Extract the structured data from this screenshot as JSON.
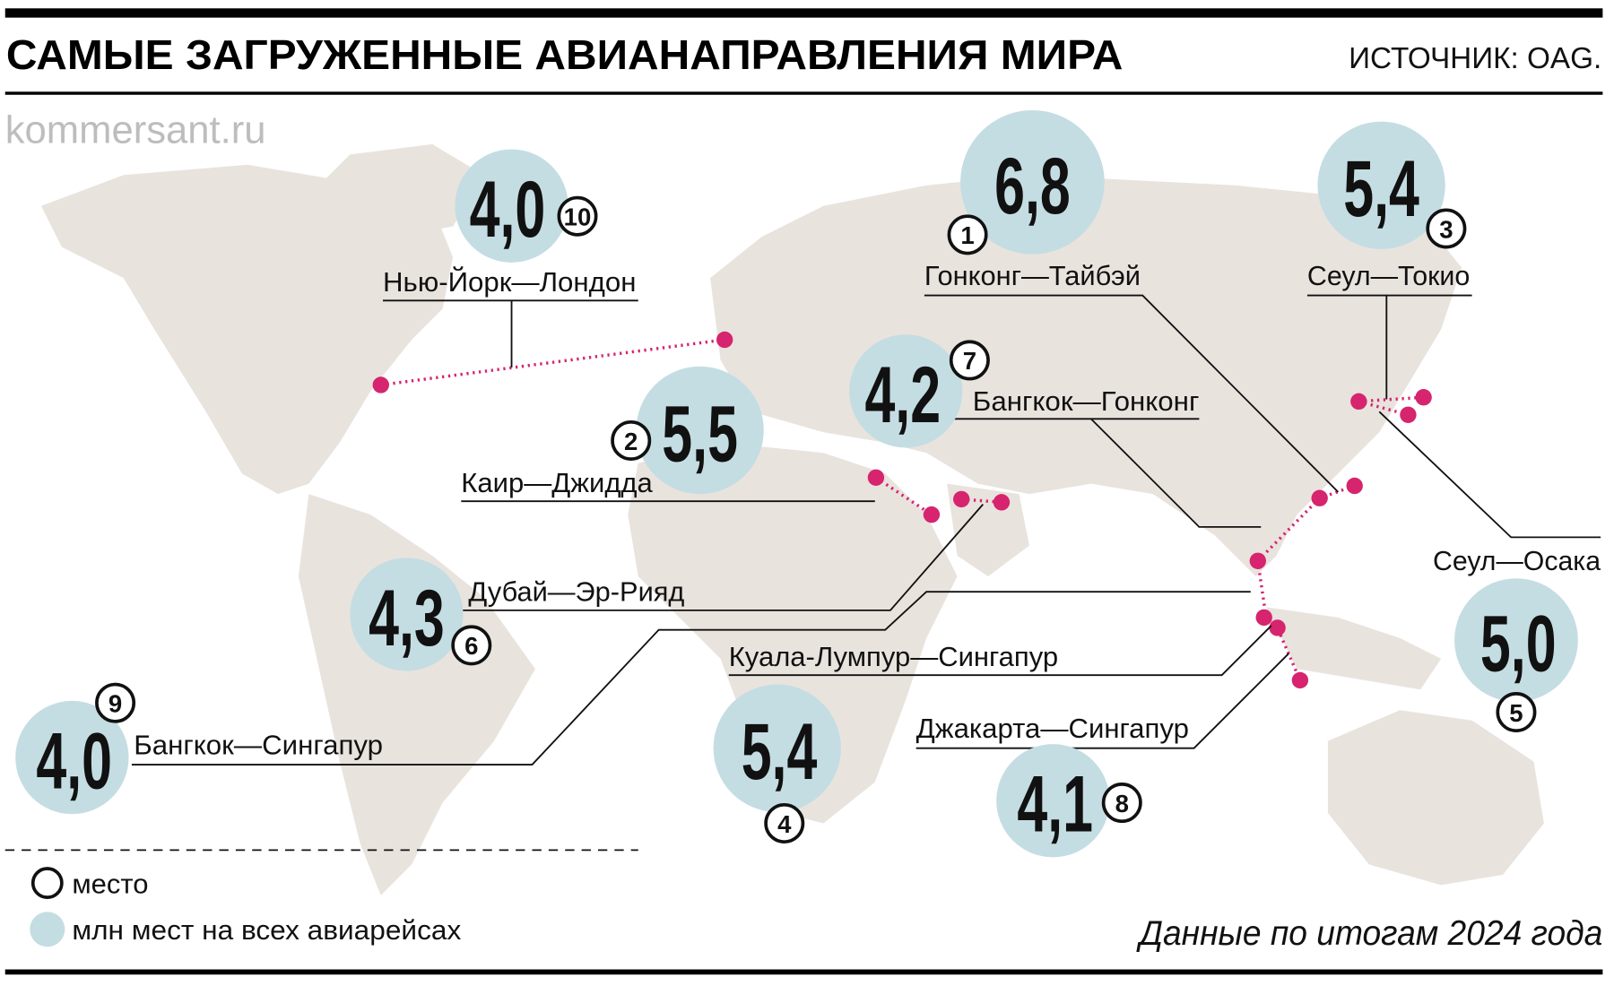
{
  "header": {
    "title": "САМЫЕ ЗАГРУЖЕННЫЕ АВИАНАПРАВЛЕНИЯ МИРА",
    "source": "ИСТОЧНИК: OAG."
  },
  "watermark": "kommersant.ru",
  "colors": {
    "bubble": "#c4dde3",
    "route": "#d6246e",
    "land": "#e9e3de"
  },
  "routes": [
    {
      "rank": "1",
      "name": "Гонконг—Тайбэй",
      "value": "6,8"
    },
    {
      "rank": "2",
      "name": "Каир—Джидда",
      "value": "5,5"
    },
    {
      "rank": "3",
      "name": "Сеул—Токио",
      "value": "5,4"
    },
    {
      "rank": "4",
      "name": "Куала-Лумпур—Сингапур",
      "value": "5,4"
    },
    {
      "rank": "5",
      "name": "Сеул—Осака",
      "value": "5,0"
    },
    {
      "rank": "6",
      "name": "Дубай—Эр-Рияд",
      "value": "4,3"
    },
    {
      "rank": "7",
      "name": "Бангкок—Гонконг",
      "value": "4,2"
    },
    {
      "rank": "8",
      "name": "Джакарта—Сингапур",
      "value": "4,1"
    },
    {
      "rank": "9",
      "name": "Бангкок—Сингапур",
      "value": "4,0"
    },
    {
      "rank": "10",
      "name": "Нью-Йорк—Лондон",
      "value": "4,0"
    }
  ],
  "legend": {
    "rank": "место",
    "value": "млн мест на всех авиарейсах"
  },
  "footnote": "Данные по итогам 2024 года"
}
